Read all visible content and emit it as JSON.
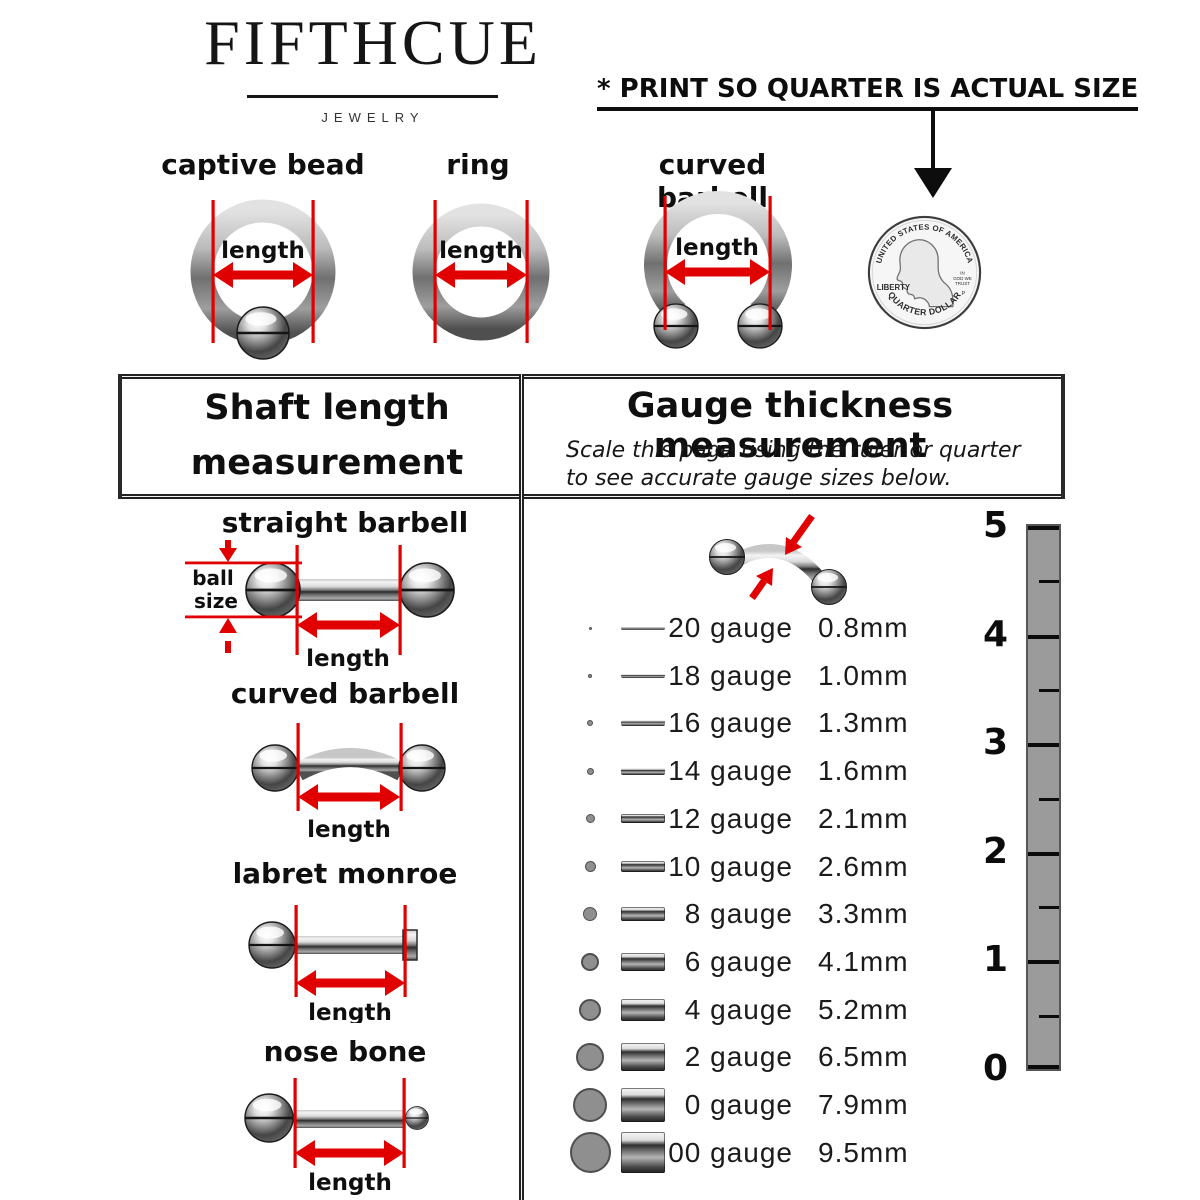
{
  "header": {
    "logo_name": "FIFTHCUE",
    "logo_tagline": "JEWELRY",
    "print_note": "* PRINT SO QUARTER IS ACTUAL SIZE"
  },
  "ring_types": {
    "items": [
      {
        "label": "captive bead",
        "measure_label": "length"
      },
      {
        "label": "ring",
        "measure_label": "length"
      },
      {
        "label": "curved barbell",
        "measure_label": "length"
      }
    ]
  },
  "quarter": {
    "top_text": "UNITED STATES OF AMERICA",
    "left_text": "LIBERTY",
    "motto_line1": "IN",
    "motto_line2": "GOD WE",
    "motto_line3": "TRUST",
    "mint_mark": "P",
    "bottom_text": "QUARTER DOLLAR"
  },
  "shaft_section": {
    "title_line1": "Shaft length",
    "title_line2": "measurement",
    "figures": [
      {
        "label": "straight barbell",
        "measure_label": "length",
        "ball_size_line1": "ball",
        "ball_size_line2": "size"
      },
      {
        "label": "curved barbell",
        "measure_label": "length"
      },
      {
        "label": "labret monroe",
        "measure_label": "length"
      },
      {
        "label": "nose bone",
        "measure_label": "length"
      }
    ]
  },
  "gauge_section": {
    "title": "Gauge thickness measurement",
    "subtitle_line1": "Scale this page using the ruler or quarter",
    "subtitle_line2": "to see accurate gauge sizes below.",
    "rows": [
      {
        "gauge": "20 gauge",
        "mm": "0.8mm",
        "mm_value": 0.8
      },
      {
        "gauge": "18 gauge",
        "mm": "1.0mm",
        "mm_value": 1.0
      },
      {
        "gauge": "16 gauge",
        "mm": "1.3mm",
        "mm_value": 1.3
      },
      {
        "gauge": "14 gauge",
        "mm": "1.6mm",
        "mm_value": 1.6
      },
      {
        "gauge": "12 gauge",
        "mm": "2.1mm",
        "mm_value": 2.1
      },
      {
        "gauge": "10 gauge",
        "mm": "2.6mm",
        "mm_value": 2.6
      },
      {
        "gauge": "8 gauge",
        "mm": "3.3mm",
        "mm_value": 3.3
      },
      {
        "gauge": "6 gauge",
        "mm": "4.1mm",
        "mm_value": 4.1
      },
      {
        "gauge": "4 gauge",
        "mm": "5.2mm",
        "mm_value": 5.2
      },
      {
        "gauge": "2 gauge",
        "mm": "6.5mm",
        "mm_value": 6.5
      },
      {
        "gauge": "0 gauge",
        "mm": "7.9mm",
        "mm_value": 7.9
      },
      {
        "gauge": "00 gauge",
        "mm": "9.5mm",
        "mm_value": 9.5
      }
    ],
    "ruler": {
      "labels": [
        "5",
        "4",
        "3",
        "2",
        "1",
        "0"
      ]
    }
  },
  "colors": {
    "accent_red": "#e00000",
    "ruler_gray": "#9b9b9b"
  }
}
